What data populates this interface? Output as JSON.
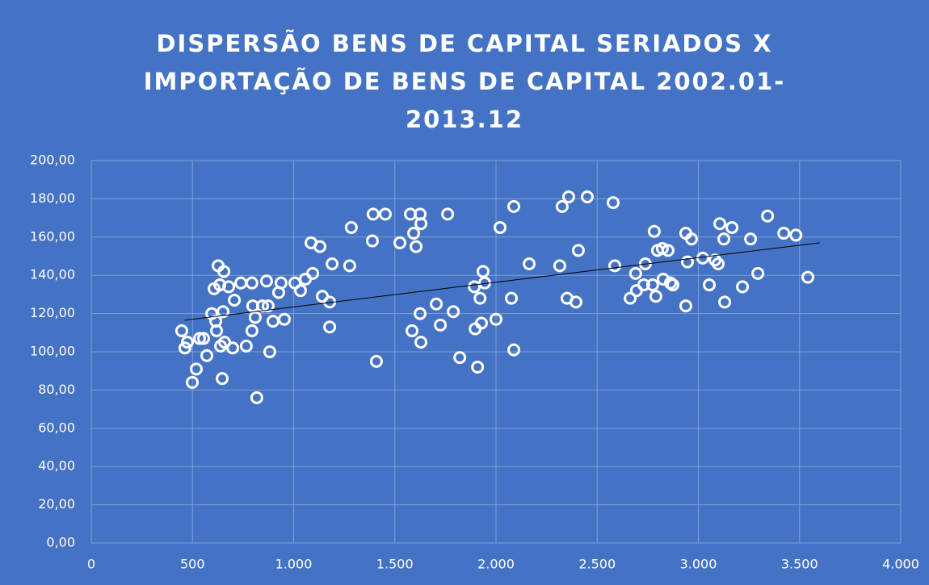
{
  "chart_data": {
    "type": "scatter",
    "title": "DISPERSÃO BENS DE CAPITAL SERIADOS X IMPORTAÇÃO DE BENS DE CAPITAL 2002.01-2013.12",
    "series": [
      {
        "color": "#ffffff",
        "x": [
          447,
          463,
          475,
          499,
          519,
          535,
          555,
          571,
          595,
          607,
          615,
          619,
          627,
          635,
          639,
          647,
          651,
          655,
          659,
          679,
          699,
          707,
          739,
          766,
          794,
          794,
          798,
          810,
          818,
          846,
          866,
          874,
          882,
          898,
          926,
          938,
          954,
          1006,
          1034,
          1058,
          1086,
          1094,
          1130,
          1142,
          1178,
          1178,
          1190,
          1277,
          1285,
          1389,
          1393,
          1409,
          1453,
          1525,
          1577,
          1585,
          1593,
          1605,
          1625,
          1629,
          1625,
          1629,
          1705,
          1725,
          1761,
          1789,
          1821,
          1893,
          1897,
          1909,
          1921,
          1928,
          1936,
          1944,
          2000,
          2020,
          2076,
          2088,
          2088,
          2164,
          2315,
          2327,
          2351,
          2359,
          2395,
          2407,
          2451,
          2579,
          2587,
          2663,
          2690,
          2694,
          2730,
          2738,
          2774,
          2782,
          2790,
          2798,
          2822,
          2826,
          2850,
          2862,
          2874,
          2938,
          2938,
          2946,
          2966,
          3022,
          3054,
          3082,
          3098,
          3106,
          3126,
          3130,
          3166,
          3218,
          3258,
          3294,
          3342,
          3422,
          3482,
          3541
        ],
        "y": [
          111,
          102,
          105,
          84,
          91,
          107,
          107,
          98,
          120,
          133,
          116,
          111,
          145,
          135,
          103,
          86,
          121,
          142,
          105,
          134,
          102,
          127,
          136,
          103,
          136,
          111,
          124,
          118,
          76,
          124,
          137,
          124,
          100,
          116,
          131,
          136,
          117,
          136,
          132,
          138,
          157,
          141,
          155,
          129,
          126,
          113,
          146,
          145,
          165,
          158,
          172,
          95,
          172,
          157,
          172,
          111,
          162,
          155,
          172,
          167,
          120,
          105,
          125,
          114,
          172,
          121,
          97,
          134,
          112,
          92,
          128,
          115,
          142,
          136,
          117,
          165,
          128,
          101,
          176,
          146,
          145,
          176,
          128,
          181,
          126,
          153,
          181,
          178,
          145,
          128,
          141,
          132,
          135,
          146,
          135,
          163,
          129,
          153,
          154,
          138,
          153,
          136,
          135,
          124,
          162,
          147,
          159,
          149,
          135,
          148,
          146,
          167,
          159,
          126,
          165,
          134,
          159,
          141,
          171,
          162,
          161,
          139
        ]
      }
    ],
    "trendline": {
      "x": [
        460,
        3600
      ],
      "y": [
        116.5,
        157
      ]
    },
    "xlim": [
      0,
      4000
    ],
    "xticks": [
      0,
      500,
      {
        "value": 1000,
        "label": "1.000"
      },
      {
        "value": 1500,
        "label": "1.500"
      },
      {
        "value": 2000,
        "label": "2.000"
      },
      {
        "value": 2500,
        "label": "2.500"
      },
      {
        "value": 3000,
        "label": "3.000"
      },
      {
        "value": 3500,
        "label": "3.500"
      },
      {
        "value": 4000,
        "label": "4.000"
      }
    ],
    "ylim": [
      0,
      200
    ],
    "yticks": [
      {
        "value": 0,
        "label": "0,00"
      },
      {
        "value": 20,
        "label": "20,00"
      },
      {
        "value": 40,
        "label": "40,00"
      },
      {
        "value": 60,
        "label": "60,00"
      },
      {
        "value": 80,
        "label": "80,00"
      },
      {
        "value": 100,
        "label": "100,00"
      },
      {
        "value": 120,
        "label": "120,00"
      },
      {
        "value": 140,
        "label": "140,00"
      },
      {
        "value": 160,
        "label": "160,00"
      },
      {
        "value": 180,
        "label": "180,00"
      },
      {
        "value": 200,
        "label": "200,00"
      }
    ],
    "grid": true
  }
}
